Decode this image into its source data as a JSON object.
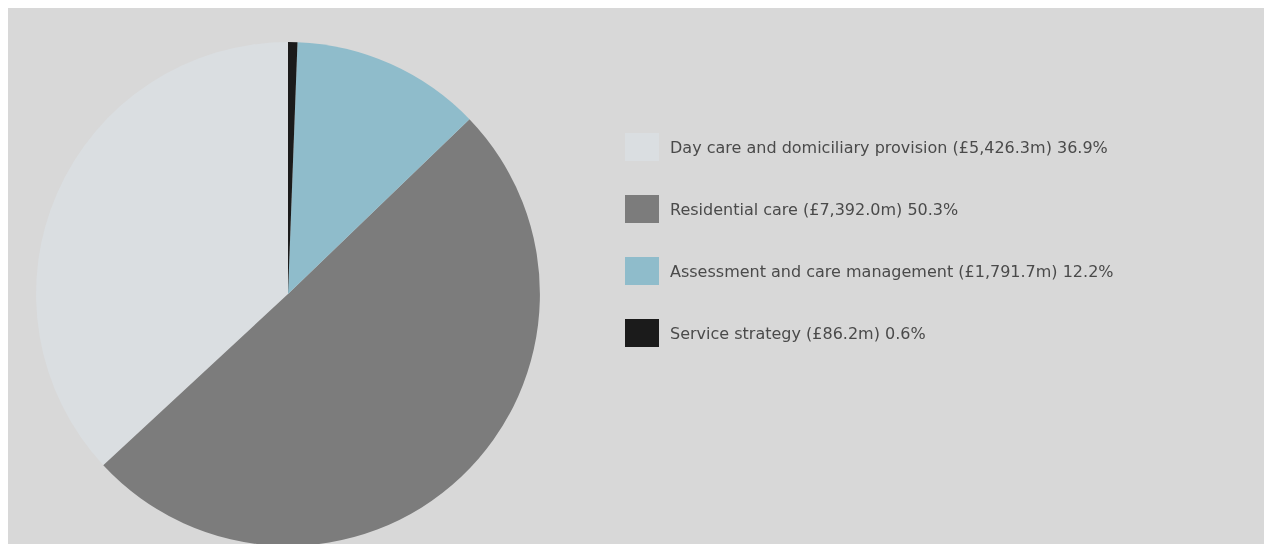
{
  "chart_data": {
    "type": "pie",
    "categories": [
      "Day care and domiciliary provision (£5,426.3m) 36.9%",
      "Residential care (£7,392.0m) 50.3%",
      "Assessment and care management (£1,791.7m) 12.2%",
      "Service strategy (£86.2m) 0.6%"
    ],
    "values": [
      36.9,
      50.3,
      12.2,
      0.6
    ],
    "colors": [
      "#dadee1",
      "#7c7c7c",
      "#8fbccb",
      "#1b1b1b"
    ],
    "legend": "right"
  }
}
